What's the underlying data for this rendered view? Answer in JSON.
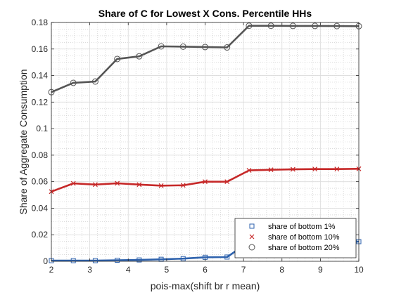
{
  "chart_data": {
    "type": "line",
    "title": "Share of C for Lowest X Cons. Percentile HHs",
    "xlabel": "pois-max(shift br r mean)",
    "ylabel": "Share of Aggregate Consumption",
    "xlim": [
      2,
      10
    ],
    "ylim": [
      0,
      0.18
    ],
    "xticks": [
      2,
      3,
      4,
      5,
      6,
      7,
      8,
      9,
      10
    ],
    "yticks": [
      0,
      0.02,
      0.04,
      0.06,
      0.08,
      0.1,
      0.12,
      0.14,
      0.16,
      0.18
    ],
    "xtick_labels": [
      "2",
      "3",
      "4",
      "5",
      "6",
      "7",
      "8",
      "9",
      "10"
    ],
    "ytick_labels": [
      "0",
      "0.02",
      "0.04",
      "0.06",
      "0.08",
      "0.1",
      "0.12",
      "0.14",
      "0.16",
      "0.18"
    ],
    "grid": true,
    "minor_grid": true,
    "legend_position": "bottom-right",
    "x": [
      2.0,
      2.5714,
      3.1429,
      3.7143,
      4.2857,
      4.8571,
      5.4286,
      6.0,
      6.5714,
      7.1429,
      7.7143,
      8.2857,
      8.8571,
      9.4286,
      10.0
    ],
    "series": [
      {
        "name": "share of bottom 1%",
        "marker": "square",
        "color": "#2e62ad",
        "values": [
          0.0005,
          0.0005,
          0.0005,
          0.0008,
          0.001,
          0.0015,
          0.002,
          0.003,
          0.0032,
          0.0145,
          0.0148,
          0.0148,
          0.0148,
          0.0148,
          0.0148
        ]
      },
      {
        "name": "share of bottom 10%",
        "marker": "x",
        "color": "#c62828",
        "values": [
          0.0525,
          0.0587,
          0.0578,
          0.0588,
          0.0578,
          0.057,
          0.0573,
          0.06,
          0.06,
          0.0685,
          0.069,
          0.0693,
          0.0695,
          0.0695,
          0.0697
        ]
      },
      {
        "name": "share of bottom 20%",
        "marker": "circle",
        "color": "#555555",
        "values": [
          0.1275,
          0.1345,
          0.1355,
          0.1525,
          0.1545,
          0.162,
          0.1618,
          0.1615,
          0.1612,
          0.1775,
          0.1775,
          0.1774,
          0.1774,
          0.1773,
          0.1772
        ]
      }
    ]
  }
}
